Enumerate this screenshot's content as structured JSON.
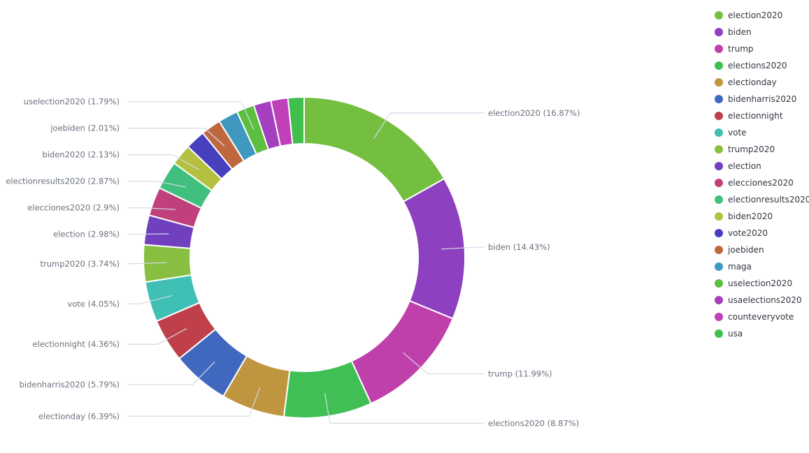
{
  "chart_data": {
    "type": "pie",
    "variant": "donut",
    "legend_position": "top-right",
    "slices": [
      {
        "name": "election2020",
        "value": 16.87,
        "label": "election2020 (16.87%)",
        "color": "#74bf40"
      },
      {
        "name": "biden",
        "value": 14.43,
        "label": "biden (14.43%)",
        "color": "#8d40bf"
      },
      {
        "name": "trump",
        "value": 11.99,
        "label": "trump (11.99%)",
        "color": "#bf40ab"
      },
      {
        "name": "elections2020",
        "value": 8.87,
        "label": "elections2020 (8.87%)",
        "color": "#40bf55"
      },
      {
        "name": "electionday",
        "value": 6.39,
        "label": "electionday (6.39%)",
        "color": "#bf9540"
      },
      {
        "name": "bidenharris2020",
        "value": 5.79,
        "label": "bidenharris2020 (5.79%)",
        "color": "#4068bf"
      },
      {
        "name": "electionnight",
        "value": 4.36,
        "label": "electionnight (4.36%)",
        "color": "#bf404a"
      },
      {
        "name": "vote",
        "value": 4.05,
        "label": "vote (4.05%)",
        "color": "#40bfb5"
      },
      {
        "name": "trump2020",
        "value": 3.74,
        "label": "trump2020 (3.74%)",
        "color": "#88bf40"
      },
      {
        "name": "election",
        "value": 2.98,
        "label": "election (2.98%)",
        "color": "#7040bf"
      },
      {
        "name": "elecciones2020",
        "value": 2.9,
        "label": "elecciones2020 (2.9%)",
        "color": "#bf407a"
      },
      {
        "name": "electionresults2020",
        "value": 2.87,
        "label": "electionresults2020 (2.87%)",
        "color": "#40bf7f"
      },
      {
        "name": "biden2020",
        "value": 2.13,
        "label": "biden2020 (2.13%)",
        "color": "#b5bf40"
      },
      {
        "name": "vote2020",
        "value": 2.01,
        "label": "vote2020",
        "color": "#4640bf"
      },
      {
        "name": "joebiden",
        "value": 2.01,
        "label": "joebiden (2.01%)",
        "color": "#bf6840"
      },
      {
        "name": "maga",
        "value": 2.0,
        "label": "maga",
        "color": "#4097bf"
      },
      {
        "name": "uselection2020",
        "value": 1.79,
        "label": "uselection2020 (1.79%)",
        "color": "#5cbf40"
      },
      {
        "name": "usaelections2020",
        "value": 1.75,
        "label": "usaelections2020",
        "color": "#a440bf"
      },
      {
        "name": "counteveryvote",
        "value": 1.72,
        "label": "counteveryvote",
        "color": "#bf40b8"
      },
      {
        "name": "usa",
        "value": 1.62,
        "label": "usa",
        "color": "#40bf4d"
      }
    ],
    "outside_labels": [
      "election2020 (16.87%)",
      "biden (14.43%)",
      "trump (11.99%)",
      "elections2020 (8.87%)",
      "electionday (6.39%)",
      "bidenharris2020 (5.79%)",
      "electionnight (4.36%)",
      "vote (4.05%)",
      "trump2020 (3.74%)",
      "election (2.98%)",
      "elecciones2020 (2.9%)",
      "electionresults2020 (2.87%)",
      "biden2020 (2.13%)",
      "joebiden (2.01%)",
      "uselection2020 (1.79%)"
    ]
  }
}
